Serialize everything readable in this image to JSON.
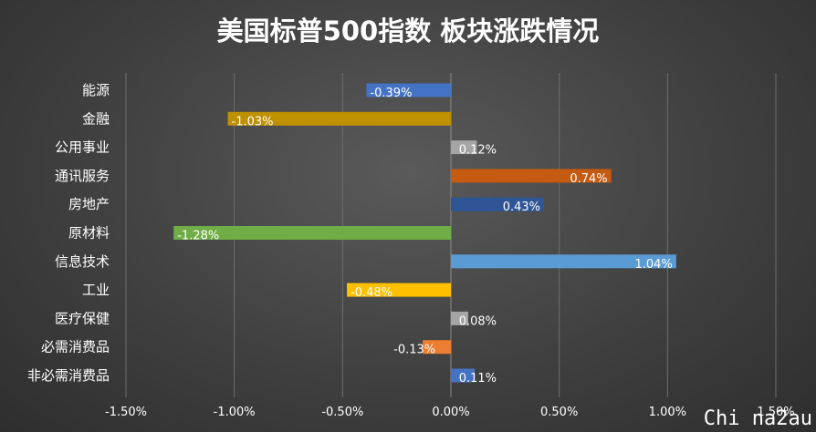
{
  "chart_data": {
    "type": "bar",
    "orientation": "horizontal",
    "title": "美国标普500指数 板块涨跌情况",
    "categories": [
      "能源",
      "金融",
      "公用事业",
      "通讯服务",
      "房地产",
      "原材料",
      "信息技术",
      "工业",
      "医疗保健",
      "必需消费品",
      "非必需消费品"
    ],
    "values": [
      -0.39,
      -1.03,
      0.12,
      0.74,
      0.43,
      -1.28,
      1.04,
      -0.48,
      0.08,
      -0.13,
      0.11
    ],
    "data_labels": [
      "-0.39%",
      "-1.03%",
      "0.12%",
      "0.74%",
      "0.43%",
      "-1.28%",
      "1.04%",
      "-0.48%",
      "0.08%",
      "-0.13%",
      "0.11%"
    ],
    "colors": [
      "#4472c4",
      "#bf9000",
      "#a5a5a5",
      "#c55a11",
      "#2f5597",
      "#70ad47",
      "#5b9bd5",
      "#ffc000",
      "#a5a5a5",
      "#ed7d31",
      "#4472c4"
    ],
    "label_colors": [
      "#ffffff",
      "#ffffff",
      "#ffffff",
      "#ffffff",
      "#ffffff",
      "#ffffff",
      "#ffffff",
      "#ffffff",
      "#ffffff",
      "#ffffff",
      "#ffffff"
    ],
    "xlim": [
      -1.5,
      1.5
    ],
    "xticks": [
      -1.5,
      -1.0,
      -0.5,
      0.0,
      0.5,
      1.0,
      1.5
    ],
    "xtick_labels": [
      "-1.50%",
      "-1.00%",
      "-0.50%",
      "0.00%",
      "0.50%",
      "1.00%",
      "1.50%"
    ],
    "grid": "vertical",
    "legend": "none"
  },
  "watermark": "Chi na2au"
}
